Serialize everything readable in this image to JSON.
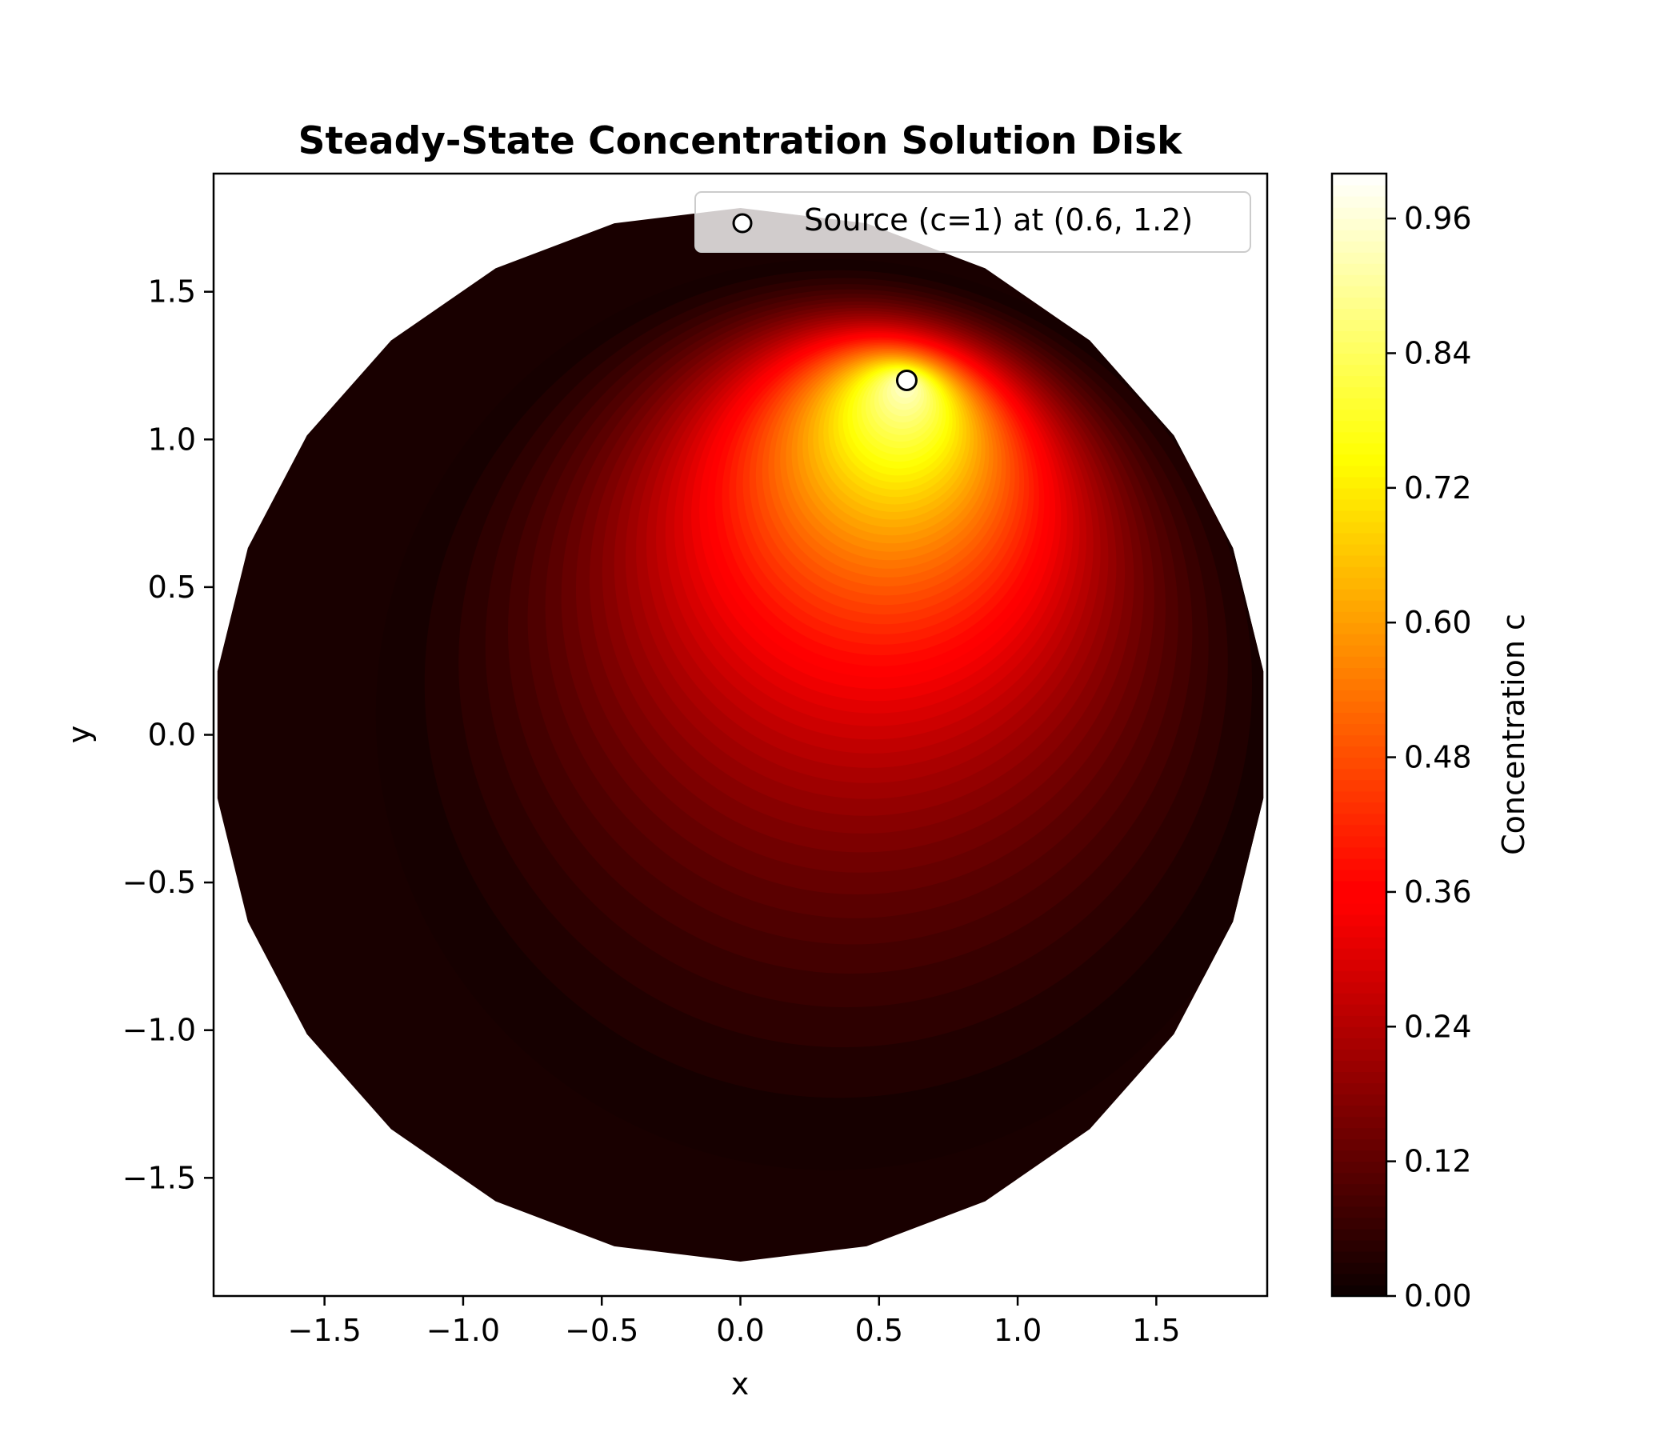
{
  "chart_data": {
    "type": "heatmap",
    "subtype": "filled-contour",
    "title": "Steady-State Concentration Solution Disk",
    "xlabel": "x",
    "ylabel": "y",
    "xlim": [
      -1.9,
      1.9
    ],
    "ylim": [
      -1.9,
      1.9
    ],
    "x_ticks": [
      -1.5,
      -1.0,
      -0.5,
      0.0,
      0.5,
      1.0,
      1.5
    ],
    "y_ticks": [
      -1.5,
      -1.0,
      -0.5,
      0.0,
      0.5,
      1.0,
      1.5
    ],
    "x_tick_labels": [
      "−1.5",
      "−1.0",
      "−0.5",
      "0.0",
      "0.5",
      "1.0",
      "1.5"
    ],
    "y_tick_labels": [
      "−1.5",
      "−1.0",
      "−0.5",
      "0.0",
      "0.5",
      "1.0",
      "1.5"
    ],
    "colormap": "hot",
    "colorbar": {
      "label": "Concentration c",
      "range": [
        0.0,
        1.0
      ],
      "ticks": [
        0.0,
        0.12,
        0.24,
        0.36,
        0.48,
        0.6,
        0.72,
        0.84,
        0.96
      ],
      "tick_labels": [
        "0.00",
        "0.12",
        "0.24",
        "0.36",
        "0.48",
        "0.60",
        "0.72",
        "0.84",
        "0.96"
      ]
    },
    "domain": {
      "shape": "disk",
      "center": [
        0,
        0
      ],
      "radius": 1.9
    },
    "source": {
      "x": 0.6,
      "y": 1.2,
      "c": 1
    },
    "grid": false,
    "legend": {
      "position": "upper-right",
      "entries": [
        "Source (c=1) at (0.6, 1.2)"
      ]
    }
  }
}
